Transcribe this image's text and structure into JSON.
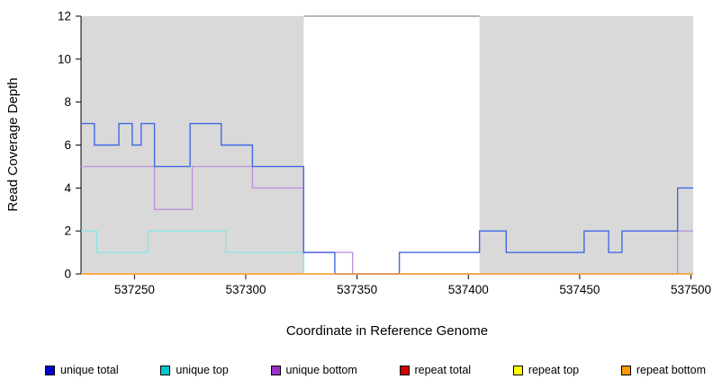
{
  "chart_data": {
    "type": "line",
    "subtype": "step-coverage-plot",
    "title": "",
    "xlabel": "Coordinate in Reference Genome",
    "ylabel": "Read Coverage Depth",
    "xlim": [
      537226,
      537501
    ],
    "ylim": [
      0,
      12
    ],
    "x_ticks": [
      537250,
      537300,
      537350,
      537400,
      537450,
      537500
    ],
    "y_ticks": [
      0,
      2,
      4,
      6,
      8,
      10,
      12
    ],
    "grid": false,
    "legend_position": "bottom",
    "shaded_regions": [
      {
        "name": "left-unique-region",
        "start": 537226,
        "end": 537326,
        "color": "#d9d9d9"
      },
      {
        "name": "right-unique-region",
        "start": 537405,
        "end": 537501,
        "color": "#d9d9d9"
      }
    ],
    "top_marker": {
      "start": 537326,
      "end": 537405,
      "y": 12,
      "color": "#8c8c8c"
    },
    "axis_color": "#000000",
    "series": [
      {
        "name": "repeat total",
        "color": "#e08a8a",
        "steps": [
          [
            537226,
            0
          ],
          [
            537501,
            0
          ]
        ]
      },
      {
        "name": "repeat top",
        "color": "#ffee80",
        "steps": [
          [
            537226,
            0
          ],
          [
            537501,
            0
          ]
        ]
      },
      {
        "name": "unique top",
        "color": "#8fe3e3",
        "steps": [
          [
            537226,
            2
          ],
          [
            537233,
            1
          ],
          [
            537256,
            2
          ],
          [
            537291,
            1
          ],
          [
            537326,
            0
          ],
          [
            537501,
            0
          ]
        ]
      },
      {
        "name": "unique bottom",
        "color": "#bd93dd",
        "steps": [
          [
            537226,
            5
          ],
          [
            537259,
            3
          ],
          [
            537276,
            5
          ],
          [
            537303,
            4
          ],
          [
            537326,
            1
          ],
          [
            537348,
            0
          ],
          [
            537494,
            2
          ],
          [
            537501,
            2
          ]
        ]
      },
      {
        "name": "unique total",
        "color": "#4169e1",
        "steps": [
          [
            537226,
            7
          ],
          [
            537232,
            6
          ],
          [
            537243,
            7
          ],
          [
            537249,
            6
          ],
          [
            537253,
            7
          ],
          [
            537259,
            5
          ],
          [
            537275,
            7
          ],
          [
            537289,
            6
          ],
          [
            537303,
            5
          ],
          [
            537326,
            1
          ],
          [
            537340,
            0
          ],
          [
            537369,
            1
          ],
          [
            537405,
            2
          ],
          [
            537417,
            1
          ],
          [
            537452,
            2
          ],
          [
            537463,
            1
          ],
          [
            537469,
            2
          ],
          [
            537494,
            4
          ],
          [
            537501,
            4
          ]
        ]
      },
      {
        "name": "repeat bottom",
        "color": "#ffa033",
        "steps": [
          [
            537226,
            0
          ],
          [
            537501,
            0
          ]
        ]
      }
    ]
  },
  "legend": {
    "items": [
      {
        "label": "unique total",
        "color": "#0000cc"
      },
      {
        "label": "unique top",
        "color": "#00c5cd"
      },
      {
        "label": "unique bottom",
        "color": "#9932cc"
      },
      {
        "label": "repeat total",
        "color": "#cc0000"
      },
      {
        "label": "repeat top",
        "color": "#ffff00"
      },
      {
        "label": "repeat bottom",
        "color": "#ff9900"
      }
    ]
  }
}
